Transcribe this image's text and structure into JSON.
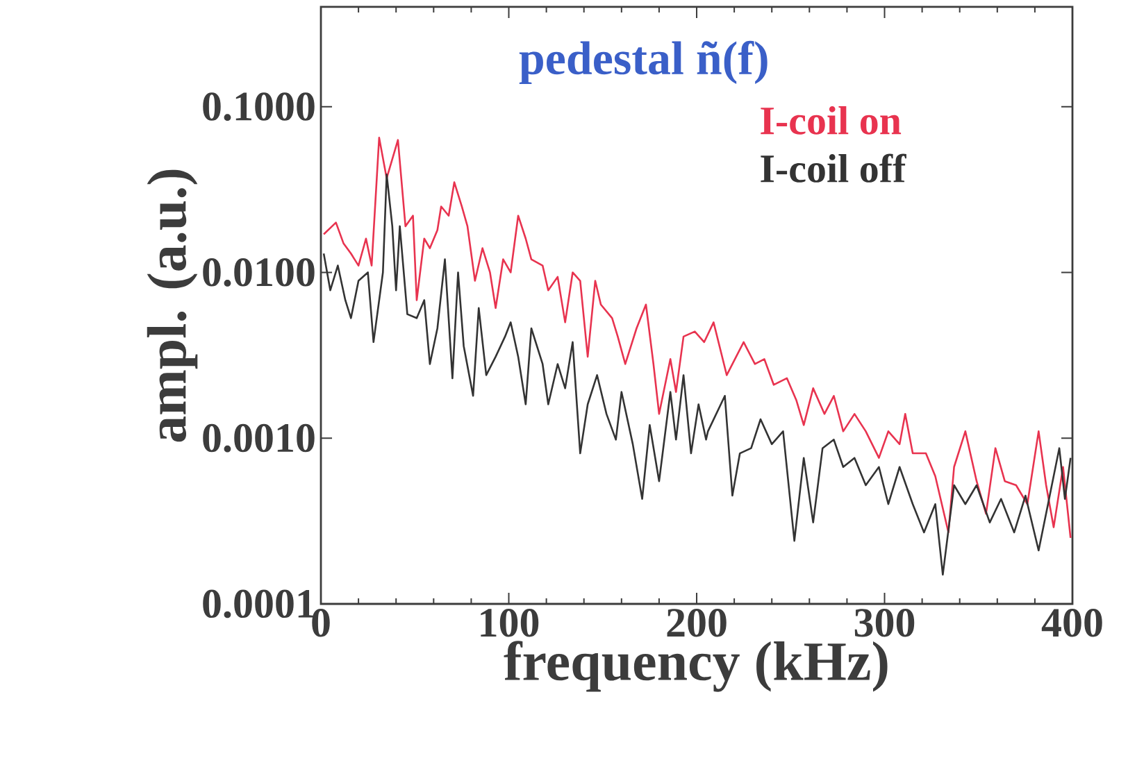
{
  "chart_data": {
    "type": "line",
    "title": "pedestal ñ(f)",
    "xlabel": "frequency (kHz)",
    "ylabel": "ampl. (a.u.)",
    "log": "y",
    "legend": "top right",
    "xlim": [
      0,
      400
    ],
    "xticks": [
      0,
      100,
      200,
      300,
      400
    ],
    "ylim": [
      0.0001,
      0.4
    ],
    "yticks": [
      {
        "value": 0.1,
        "label": "0.1000"
      },
      {
        "value": 0.01,
        "label": "0.0100"
      },
      {
        "value": 0.001,
        "label": "0.0010"
      },
      {
        "value": 0.0001,
        "label": "0.0001"
      }
    ],
    "series": [
      {
        "name": "I-coil on",
        "color": "#e8334f",
        "x": [
          1.5,
          8,
          12,
          16,
          20,
          24,
          27,
          31,
          35,
          41,
          45,
          49,
          51,
          55,
          58,
          62,
          64,
          68,
          71,
          75,
          78,
          82,
          86,
          90,
          93,
          97,
          101,
          105,
          109,
          112,
          118,
          121,
          126,
          130,
          134,
          138,
          142,
          146,
          149,
          155,
          158,
          162,
          168,
          173,
          177,
          180,
          186,
          189,
          193,
          199,
          204,
          209,
          216,
          225,
          231,
          236,
          241,
          248,
          253,
          257,
          262,
          268,
          273,
          278,
          284,
          290,
          297,
          302,
          308,
          311,
          315,
          322,
          327,
          334,
          337,
          343,
          349,
          354,
          359,
          364,
          370,
          376,
          382,
          386,
          390,
          395,
          399
        ],
        "values": [
          0.017,
          0.02,
          0.015,
          0.013,
          0.011,
          0.016,
          0.011,
          0.065,
          0.037,
          0.063,
          0.019,
          0.022,
          0.0068,
          0.016,
          0.014,
          0.018,
          0.025,
          0.022,
          0.035,
          0.025,
          0.019,
          0.0089,
          0.014,
          0.01,
          0.0061,
          0.012,
          0.01,
          0.022,
          0.016,
          0.012,
          0.011,
          0.0078,
          0.0094,
          0.005,
          0.01,
          0.0089,
          0.0031,
          0.0089,
          0.0064,
          0.0053,
          0.0041,
          0.0028,
          0.0046,
          0.0064,
          0.0028,
          0.0014,
          0.003,
          0.0019,
          0.0041,
          0.0044,
          0.0038,
          0.005,
          0.0024,
          0.0038,
          0.0028,
          0.003,
          0.0021,
          0.0023,
          0.0017,
          0.0012,
          0.002,
          0.0014,
          0.0018,
          0.0011,
          0.0014,
          0.0011,
          0.00076,
          0.0011,
          0.00092,
          0.0014,
          0.00081,
          0.00081,
          0.00059,
          0.00027,
          0.00067,
          0.0011,
          0.00055,
          0.00035,
          0.00087,
          0.00055,
          0.00052,
          0.0004,
          0.0011,
          0.00052,
          0.00029,
          0.00067,
          0.00025
        ]
      },
      {
        "name": "I-coil off",
        "color": "#333333",
        "x": [
          1.5,
          5,
          9,
          13,
          16,
          20,
          25,
          28,
          33,
          35,
          38,
          40,
          42,
          46,
          51,
          55,
          58,
          62,
          66,
          70,
          73,
          76,
          81,
          84,
          88,
          93,
          98,
          101,
          105,
          109,
          112,
          118,
          121,
          126,
          130,
          134,
          138,
          142,
          147,
          152,
          157,
          160,
          166,
          171,
          175,
          180,
          186,
          189,
          193,
          197,
          201,
          205,
          206,
          215,
          219,
          223,
          229,
          234,
          240,
          246,
          252,
          257,
          262,
          267,
          273,
          278,
          284,
          290,
          297,
          302,
          308,
          315,
          321,
          327,
          331,
          337,
          343,
          349,
          356,
          362,
          369,
          375,
          382,
          387,
          393,
          396,
          399
        ],
        "values": [
          0.013,
          0.0078,
          0.011,
          0.0068,
          0.0053,
          0.0089,
          0.01,
          0.0038,
          0.01,
          0.039,
          0.019,
          0.0078,
          0.019,
          0.0056,
          0.0053,
          0.0068,
          0.0028,
          0.0046,
          0.012,
          0.0023,
          0.01,
          0.0036,
          0.0018,
          0.0061,
          0.0024,
          0.0031,
          0.0041,
          0.005,
          0.0031,
          0.0016,
          0.0046,
          0.0028,
          0.0016,
          0.0028,
          0.002,
          0.0038,
          0.00081,
          0.0016,
          0.0024,
          0.0014,
          0.00098,
          0.0019,
          0.00092,
          0.00043,
          0.0012,
          0.00055,
          0.0019,
          0.00098,
          0.0024,
          0.00081,
          0.0016,
          0.00098,
          0.0011,
          0.0018,
          0.00045,
          0.00081,
          0.00087,
          0.0013,
          0.00092,
          0.0011,
          0.00024,
          0.00076,
          0.00031,
          0.00087,
          0.00098,
          0.00067,
          0.00076,
          0.00052,
          0.00067,
          0.0004,
          0.00067,
          0.0004,
          0.00027,
          0.0004,
          0.00015,
          0.00052,
          0.0004,
          0.00052,
          0.00031,
          0.00043,
          0.00027,
          0.00045,
          0.00021,
          0.0004,
          0.00087,
          0.00043,
          0.00076
        ]
      }
    ]
  }
}
